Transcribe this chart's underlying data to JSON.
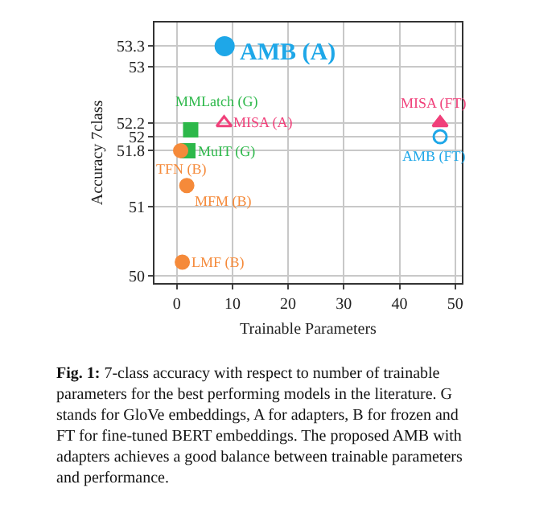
{
  "chart_data": {
    "type": "scatter",
    "xlabel": "Trainable Parameters",
    "ylabel": "Accuracy 7class",
    "xlim": [
      -4,
      51.2
    ],
    "xticks": [
      0,
      10,
      20,
      30,
      40,
      50
    ],
    "ylim": [
      49.9,
      53.64
    ],
    "yticks": [
      50,
      51,
      51.8,
      52,
      52.2,
      53,
      53.3
    ],
    "grid": true,
    "legend": false,
    "series": [
      {
        "name": "AMB (A)",
        "color": "#1ea7e8",
        "marker": "circle",
        "x": [
          8.6
        ],
        "values": [
          53.3
        ]
      },
      {
        "name": "MMLatch (G)",
        "color": "#2db84a",
        "marker": "square",
        "x": [
          2.5
        ],
        "values": [
          52.1
        ]
      },
      {
        "name": "MISA (A)",
        "color": "#f0407a",
        "marker": "triangle-open",
        "x": [
          8.5
        ],
        "values": [
          52.2
        ]
      },
      {
        "name": "MuIT (G)",
        "color": "#2db84a",
        "marker": "square",
        "x": [
          2.0
        ],
        "values": [
          51.8
        ]
      },
      {
        "name": "TFN (B)",
        "color": "#f58a3a",
        "marker": "circle",
        "x": [
          0.7
        ],
        "values": [
          51.8
        ]
      },
      {
        "name": "MFM (B)",
        "color": "#f58a3a",
        "marker": "circle",
        "x": [
          1.8
        ],
        "values": [
          51.3
        ]
      },
      {
        "name": "LMF (B)",
        "color": "#f58a3a",
        "marker": "circle",
        "x": [
          1.0
        ],
        "values": [
          50.2
        ]
      },
      {
        "name": "MISA (FT)",
        "color": "#f0407a",
        "marker": "triangle",
        "x": [
          47.3
        ],
        "values": [
          52.2
        ]
      },
      {
        "name": "AMB (FT)",
        "color": "#1ea7e8",
        "marker": "circle-open",
        "x": [
          47.3
        ],
        "values": [
          52.0
        ]
      }
    ],
    "annotations": [
      "Fig. 1: 7-class accuracy with respect to number of trainable parameters for the best performing models in the literature. G stands for GloVe embeddings, A for adapters, B for frozen and FT for fine-tuned BERT embeddings. The proposed AMB with adapters achieves a good balance between trainable parameters and performance."
    ]
  }
}
